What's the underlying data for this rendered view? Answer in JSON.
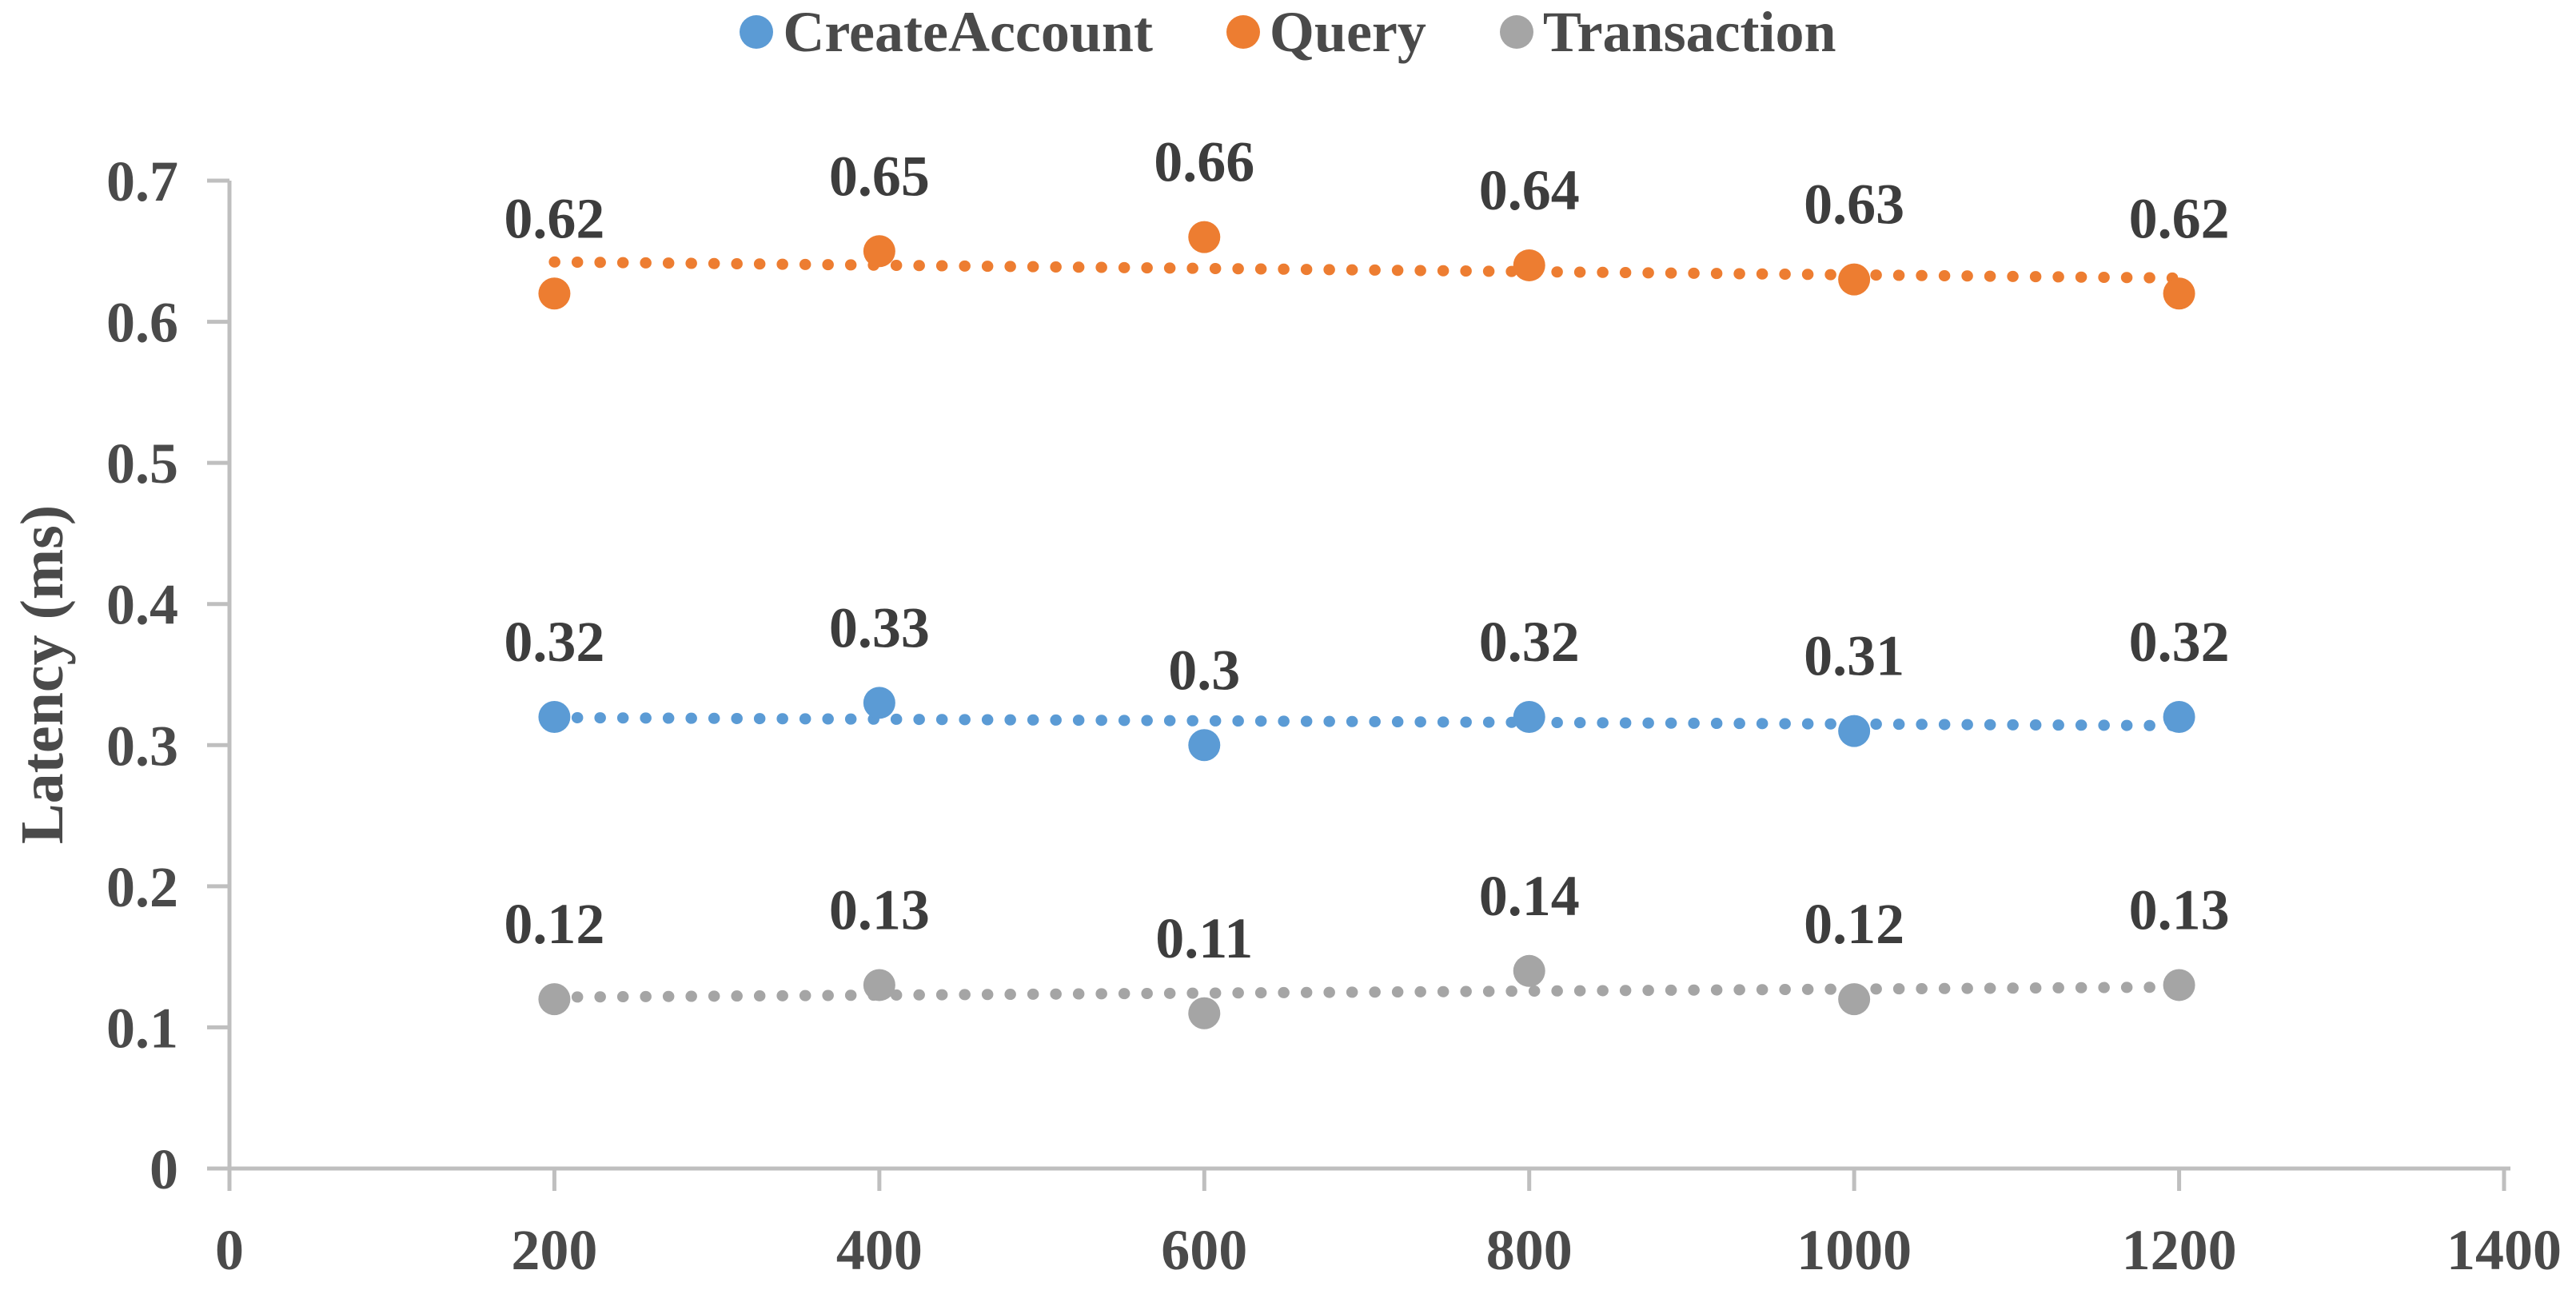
{
  "chart_data": {
    "type": "scatter",
    "title": "",
    "xlabel": "",
    "ylabel": "Latency (ms)",
    "x": [
      200,
      400,
      600,
      800,
      1000,
      1200
    ],
    "series": [
      {
        "name": "CreateAccount",
        "color": "#5B9BD5",
        "values": [
          0.32,
          0.33,
          0.3,
          0.32,
          0.31,
          0.32
        ],
        "labels": [
          "0.32",
          "0.33",
          "0.3",
          "0.32",
          "0.31",
          "0.32"
        ]
      },
      {
        "name": "Query",
        "color": "#ED7D31",
        "values": [
          0.62,
          0.65,
          0.66,
          0.64,
          0.63,
          0.62
        ],
        "labels": [
          "0.62",
          "0.65",
          "0.66",
          "0.64",
          "0.63",
          "0.62"
        ]
      },
      {
        "name": "Transaction",
        "color": "#A5A5A5",
        "values": [
          0.12,
          0.13,
          0.11,
          0.14,
          0.12,
          0.13
        ],
        "labels": [
          "0.12",
          "0.13",
          "0.11",
          "0.14",
          "0.12",
          "0.13"
        ]
      }
    ],
    "trendline": "linear-dotted",
    "xlim": [
      0,
      1400
    ],
    "ylim": [
      0,
      0.7
    ],
    "x_tick_labels": [
      "0",
      "200",
      "400",
      "600",
      "800",
      "1000",
      "1200",
      "1400"
    ],
    "y_tick_labels": [
      "0",
      "0.1",
      "0.2",
      "0.3",
      "0.4",
      "0.5",
      "0.6",
      "0.7"
    ],
    "legend_position": "top-center",
    "grid": false
  },
  "styles": {
    "axis_color": "#BFBFBF",
    "tick_label_color": "#4a4a4a",
    "data_label_color": "#3d3d3d",
    "series_colors": [
      "#5B9BD5",
      "#ED7D31",
      "#A5A5A5"
    ]
  }
}
